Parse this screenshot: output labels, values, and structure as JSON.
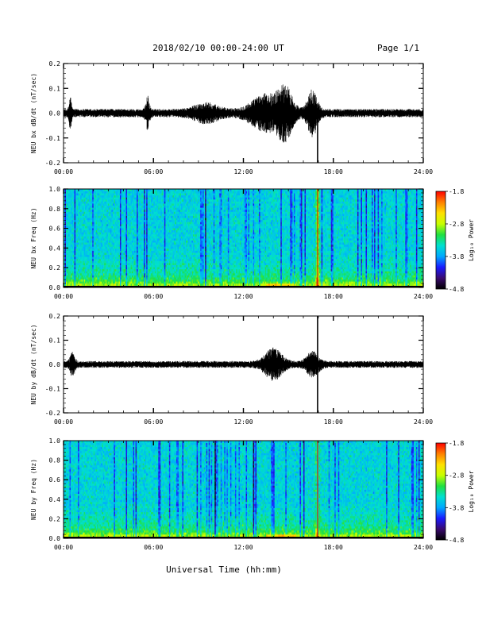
{
  "header": {
    "title": "2018/02/10  00:00-24:00 UT",
    "page": "Page 1/1"
  },
  "footer": {
    "xlabel": "Universal Time (hh:mm)"
  },
  "colors": {
    "trace": "#000000",
    "colormap": [
      "#000000",
      "#3a0a6e",
      "#1a1aff",
      "#00a8ff",
      "#00e0d0",
      "#20e040",
      "#c8ff00",
      "#ffe000",
      "#ff8000",
      "#ff0000"
    ]
  },
  "chart_data": [
    {
      "type": "line",
      "ylabel": "NEU bx dB/dt (nT/sec)",
      "xlim": [
        0,
        24
      ],
      "ylim": [
        -0.2,
        0.2
      ],
      "x_ticks": [
        "00:00",
        "06:00",
        "12:00",
        "18:00",
        "24:00"
      ],
      "y_ticks": [
        "-0.2",
        "-0.1",
        "0.0",
        "0.1",
        "0.2"
      ],
      "y_tick_values": [
        -0.2,
        -0.1,
        0.0,
        0.1,
        0.2
      ],
      "baseline_amplitude": 0.012,
      "features": [
        {
          "t": 0.45,
          "amp": 0.04,
          "width": 0.1
        },
        {
          "t": 5.6,
          "amp": 0.04,
          "width": 0.15
        },
        {
          "t": 9.5,
          "amp": 0.02,
          "width": 1.0
        },
        {
          "t": 13.5,
          "amp": 0.045,
          "width": 1.2
        },
        {
          "t": 14.8,
          "amp": 0.06,
          "width": 0.6
        },
        {
          "t": 16.6,
          "amp": 0.06,
          "width": 0.4
        }
      ],
      "spikes": [
        {
          "t": 16.95,
          "min": -0.2,
          "max": 0.02
        }
      ]
    },
    {
      "type": "heatmap",
      "ylabel": "NEU bx Freq (Hz)",
      "colorbar_label": "Log₁₀ Power",
      "colorbar_ticks": [
        "-1.8",
        "-2.8",
        "-3.8",
        "-4.8"
      ],
      "colorbar_range": [
        -4.8,
        -1.8
      ],
      "xlim": [
        0,
        24
      ],
      "ylim": [
        0,
        1.0
      ],
      "x_ticks": [
        "00:00",
        "06:00",
        "12:00",
        "18:00",
        "24:00"
      ],
      "y_ticks": [
        "0.0",
        "0.2",
        "0.4",
        "0.6",
        "0.8",
        "1.0"
      ],
      "y_tick_values": [
        0,
        0.2,
        0.4,
        0.6,
        0.8,
        1.0
      ],
      "event_time": 16.95,
      "low_freq_enhancement": [
        {
          "t_start": 13.5,
          "t_end": 15.5
        }
      ]
    },
    {
      "type": "line",
      "ylabel": "NEU by dB/dt (nT/sec)",
      "xlim": [
        0,
        24
      ],
      "ylim": [
        -0.2,
        0.2
      ],
      "x_ticks": [
        "00:00",
        "06:00",
        "12:00",
        "18:00",
        "24:00"
      ],
      "y_ticks": [
        "-0.2",
        "-0.1",
        "0.0",
        "0.1",
        "0.2"
      ],
      "y_tick_values": [
        -0.2,
        -0.1,
        0.0,
        0.1,
        0.2
      ],
      "baseline_amplitude": 0.01,
      "features": [
        {
          "t": 0.6,
          "amp": 0.03,
          "width": 0.2
        },
        {
          "t": 14.0,
          "amp": 0.04,
          "width": 0.7
        },
        {
          "t": 16.6,
          "amp": 0.03,
          "width": 0.5
        }
      ],
      "spikes": [
        {
          "t": 16.95,
          "min": -0.2,
          "max": 0.2
        }
      ]
    },
    {
      "type": "heatmap",
      "ylabel": "NEU by Freq (Hz)",
      "colorbar_label": "Log₁₀ Power",
      "colorbar_ticks": [
        "-1.8",
        "-2.8",
        "-3.8",
        "-4.8"
      ],
      "colorbar_range": [
        -4.8,
        -1.8
      ],
      "xlim": [
        0,
        24
      ],
      "ylim": [
        0,
        1.0
      ],
      "x_ticks": [
        "00:00",
        "06:00",
        "12:00",
        "18:00",
        "24:00"
      ],
      "y_ticks": [
        "0.0",
        "0.2",
        "0.4",
        "0.6",
        "0.8",
        "1.0"
      ],
      "y_tick_values": [
        0,
        0.2,
        0.4,
        0.6,
        0.8,
        1.0
      ],
      "event_time": 16.95,
      "low_freq_enhancement": [
        {
          "t_start": 13.5,
          "t_end": 15.5
        }
      ]
    }
  ]
}
